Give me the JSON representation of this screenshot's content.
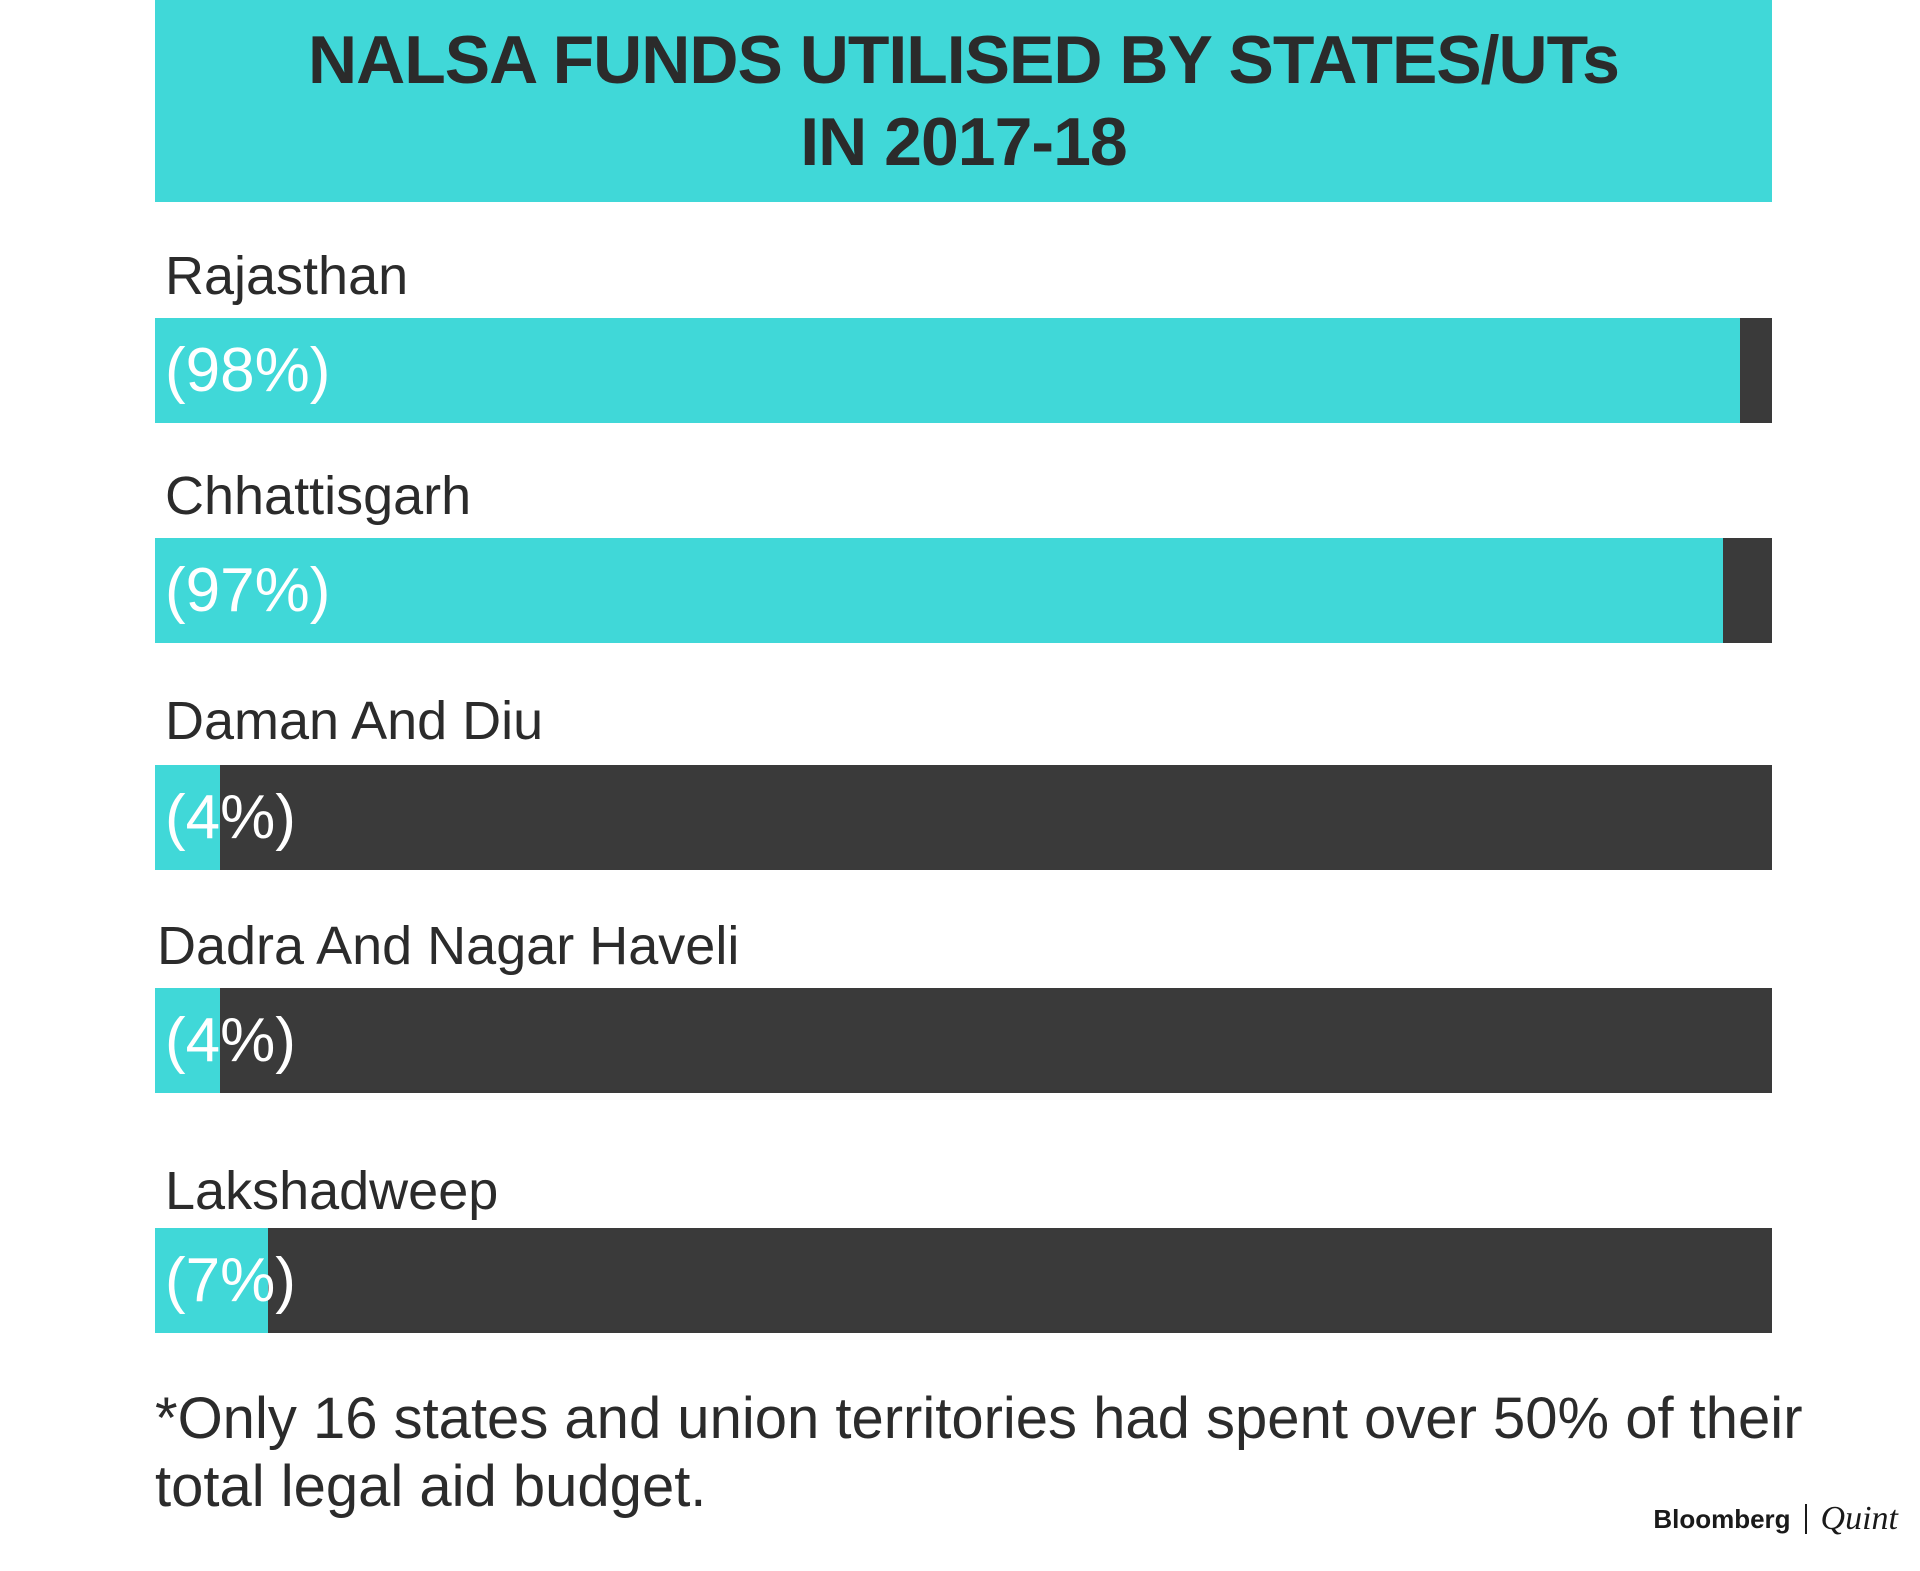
{
  "chart_data": {
    "type": "bar",
    "orientation": "horizontal",
    "title": "NALSA FUNDS UTILISED BY STATES/UTs IN 2017-18",
    "title_lines": [
      "NALSA FUNDS UTILISED BY STATES/UTs",
      "IN 2017-18"
    ],
    "categories": [
      "Rajasthan",
      "Chhattisgarh",
      "Daman And Diu",
      "Dadra And Nagar Haveli",
      "Lakshadweep"
    ],
    "values": [
      98,
      97,
      4,
      4,
      7
    ],
    "value_labels": [
      "(98%)",
      "(97%)",
      "(4%)",
      "(4%)",
      "(7%)"
    ],
    "xlim": [
      0,
      100
    ],
    "unit": "%",
    "grid": false,
    "colors": {
      "utilised": "#40d8d8",
      "remaining": "#3a3a3a"
    },
    "annotation": "*Only 16 states and union territories had spent over 50% of their total legal aid budget."
  },
  "footnote": "*Only 16 states and union territories had spent over 50% of their total legal aid budget.",
  "branding": {
    "left": "Bloomberg",
    "right": "Quint"
  }
}
